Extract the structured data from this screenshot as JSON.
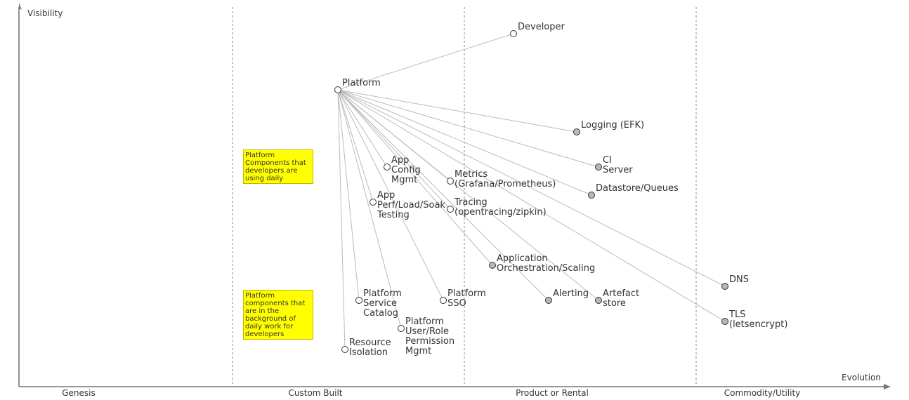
{
  "axes": {
    "y_label": "Visibility",
    "x_label": "Evolution"
  },
  "stages": [
    "Genesis",
    "Custom Built",
    "Product or Rental",
    "Commodity/Utility"
  ],
  "colors": {
    "axis": "#777777",
    "divider": "#aaaaaa",
    "link": "#bbbbbb",
    "node_stroke": "#333333",
    "node_open": "#ffffff",
    "node_filled": "#b8b8b8",
    "note_fill": "#ffff00"
  },
  "notes": [
    {
      "id": "daily",
      "text": "Platform\nComponents that\ndevelopers are\nusing daily"
    },
    {
      "id": "background",
      "text": "Platform\ncomponents that\nare in the\nbackground of\ndaily work for\ndevelopers"
    }
  ],
  "components": [
    {
      "id": "developer",
      "label": [
        "Developer"
      ],
      "filled": false
    },
    {
      "id": "platform",
      "label": [
        "Platform"
      ],
      "filled": false
    },
    {
      "id": "logging",
      "label": [
        "Logging (EFK)"
      ],
      "filled": true
    },
    {
      "id": "ci",
      "label": [
        "CI",
        "Server"
      ],
      "filled": true
    },
    {
      "id": "datastore",
      "label": [
        "Datastore/Queues"
      ],
      "filled": true
    },
    {
      "id": "app-config",
      "label": [
        "App",
        "Config",
        "Mgmt"
      ],
      "filled": false
    },
    {
      "id": "metrics",
      "label": [
        "Metrics",
        "(Grafana/Prometheus)"
      ],
      "filled": false
    },
    {
      "id": "app-perf",
      "label": [
        "App",
        "Perf/Load/Soak",
        "Testing"
      ],
      "filled": false
    },
    {
      "id": "tracing",
      "label": [
        "Tracing",
        "(opentracing/zipkin)"
      ],
      "filled": false
    },
    {
      "id": "orchestration",
      "label": [
        "Application",
        "Orchestration/Scaling"
      ],
      "filled": true
    },
    {
      "id": "dns",
      "label": [
        "DNS"
      ],
      "filled": true
    },
    {
      "id": "service-catalog",
      "label": [
        "Platform",
        "Service",
        "Catalog"
      ],
      "filled": false
    },
    {
      "id": "sso",
      "label": [
        "Platform",
        "SSO"
      ],
      "filled": false
    },
    {
      "id": "alerting",
      "label": [
        "Alerting"
      ],
      "filled": true
    },
    {
      "id": "artefact",
      "label": [
        "Artefact",
        "store"
      ],
      "filled": true
    },
    {
      "id": "tls",
      "label": [
        "TLS",
        "(letsencrypt)"
      ],
      "filled": true
    },
    {
      "id": "user-role",
      "label": [
        "Platform",
        "User/Role",
        "Permission",
        "Mgmt"
      ],
      "filled": false
    },
    {
      "id": "resource-isolation",
      "label": [
        "Resource",
        "Isolation"
      ],
      "filled": false
    }
  ],
  "links": [
    [
      "developer",
      "platform"
    ],
    [
      "platform",
      "logging"
    ],
    [
      "platform",
      "ci"
    ],
    [
      "platform",
      "datastore"
    ],
    [
      "platform",
      "app-config"
    ],
    [
      "platform",
      "metrics"
    ],
    [
      "platform",
      "app-perf"
    ],
    [
      "platform",
      "tracing"
    ],
    [
      "platform",
      "orchestration"
    ],
    [
      "platform",
      "dns"
    ],
    [
      "platform",
      "service-catalog"
    ],
    [
      "platform",
      "sso"
    ],
    [
      "platform",
      "alerting"
    ],
    [
      "platform",
      "artefact"
    ],
    [
      "platform",
      "tls"
    ],
    [
      "platform",
      "user-role"
    ],
    [
      "platform",
      "resource-isolation"
    ]
  ]
}
